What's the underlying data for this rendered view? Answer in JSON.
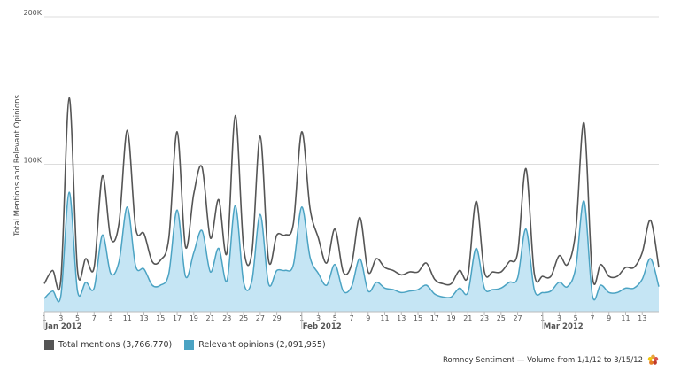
{
  "chart_data": {
    "type": "area",
    "ylabel": "Total Mentions and Relevant Opinions",
    "ylim": [
      0,
      200000
    ],
    "y_ticks": [
      {
        "value": 100000,
        "label": "100K"
      },
      {
        "value": 200000,
        "label": "200K"
      }
    ],
    "x_range": [
      1,
      75
    ],
    "x_tick_labels": [
      {
        "day": 1,
        "label": "1"
      },
      {
        "day": 3,
        "label": "3"
      },
      {
        "day": 5,
        "label": "5"
      },
      {
        "day": 7,
        "label": "7"
      },
      {
        "day": 9,
        "label": "9"
      },
      {
        "day": 11,
        "label": "11"
      },
      {
        "day": 13,
        "label": "13"
      },
      {
        "day": 15,
        "label": "15"
      },
      {
        "day": 17,
        "label": "17"
      },
      {
        "day": 19,
        "label": "19"
      },
      {
        "day": 21,
        "label": "21"
      },
      {
        "day": 23,
        "label": "23"
      },
      {
        "day": 25,
        "label": "25"
      },
      {
        "day": 27,
        "label": "27"
      },
      {
        "day": 29,
        "label": "29"
      },
      {
        "day": 32,
        "label": "1"
      },
      {
        "day": 34,
        "label": "3"
      },
      {
        "day": 36,
        "label": "5"
      },
      {
        "day": 38,
        "label": "7"
      },
      {
        "day": 40,
        "label": "9"
      },
      {
        "day": 42,
        "label": "11"
      },
      {
        "day": 44,
        "label": "13"
      },
      {
        "day": 46,
        "label": "15"
      },
      {
        "day": 48,
        "label": "17"
      },
      {
        "day": 50,
        "label": "19"
      },
      {
        "day": 52,
        "label": "21"
      },
      {
        "day": 54,
        "label": "23"
      },
      {
        "day": 56,
        "label": "25"
      },
      {
        "day": 58,
        "label": "27"
      },
      {
        "day": 61,
        "label": "1"
      },
      {
        "day": 63,
        "label": "3"
      },
      {
        "day": 65,
        "label": "5"
      },
      {
        "day": 67,
        "label": "7"
      },
      {
        "day": 69,
        "label": "9"
      },
      {
        "day": 71,
        "label": "11"
      },
      {
        "day": 73,
        "label": "13"
      }
    ],
    "month_labels": [
      {
        "day": 1,
        "label": "Jan 2012"
      },
      {
        "day": 32,
        "label": "Feb 2012"
      },
      {
        "day": 61,
        "label": "Mar 2012"
      }
    ],
    "x": [
      1,
      2,
      3,
      4,
      5,
      6,
      7,
      8,
      9,
      10,
      11,
      12,
      13,
      14,
      15,
      16,
      17,
      18,
      19,
      20,
      21,
      22,
      23,
      24,
      25,
      26,
      27,
      28,
      29,
      30,
      31,
      32,
      33,
      34,
      35,
      36,
      37,
      38,
      39,
      40,
      41,
      42,
      43,
      44,
      45,
      46,
      47,
      48,
      49,
      50,
      51,
      52,
      53,
      54,
      55,
      56,
      57,
      58,
      59,
      60,
      61,
      62,
      63,
      64,
      65,
      66,
      67,
      68,
      69,
      70,
      71,
      72,
      73,
      74,
      75
    ],
    "series": [
      {
        "name": "Total mentions",
        "legend_label": "Total mentions (3,766,770)",
        "color": "#555555",
        "values": [
          19000,
          28000,
          22000,
          145000,
          28000,
          36000,
          30000,
          92000,
          50000,
          60000,
          123000,
          57000,
          53000,
          34000,
          35000,
          50000,
          122000,
          44000,
          80000,
          98000,
          50000,
          76000,
          40000,
          133000,
          44000,
          40000,
          119000,
          35000,
          52000,
          52000,
          60000,
          122000,
          70000,
          50000,
          33000,
          56000,
          27000,
          32000,
          64000,
          27000,
          36000,
          30000,
          28000,
          25000,
          27000,
          27000,
          33000,
          22000,
          19000,
          19000,
          28000,
          24000,
          75000,
          27000,
          27000,
          27000,
          34000,
          40000,
          97000,
          26000,
          24000,
          24000,
          38000,
          32000,
          55000,
          128000,
          24000,
          32000,
          24000,
          24000,
          30000,
          30000,
          40000,
          62000,
          30000
        ]
      },
      {
        "name": "Relevant opinions",
        "legend_label": "Relevant opinions (2,091,955)",
        "color": "#4ba3c3",
        "fill": "#c5e5f4",
        "values": [
          9000,
          14000,
          11000,
          81000,
          14000,
          20000,
          16000,
          52000,
          26000,
          34000,
          71000,
          31000,
          29000,
          18000,
          18000,
          26000,
          69000,
          24000,
          40000,
          55000,
          27000,
          43000,
          21000,
          72000,
          20000,
          21000,
          66000,
          19000,
          28000,
          28000,
          32000,
          71000,
          37000,
          26000,
          18000,
          32000,
          14000,
          17000,
          36000,
          14000,
          20000,
          16000,
          15000,
          13000,
          14000,
          15000,
          18000,
          12000,
          10000,
          10000,
          16000,
          13000,
          43000,
          16000,
          15000,
          16000,
          20000,
          23000,
          56000,
          15000,
          13000,
          14000,
          20000,
          17000,
          30000,
          75000,
          11000,
          18000,
          13000,
          13000,
          16000,
          16000,
          22000,
          36000,
          17000
        ]
      }
    ]
  },
  "footer": {
    "text": "Romney Sentiment — Volume from 1/1/12 to 3/15/12"
  }
}
